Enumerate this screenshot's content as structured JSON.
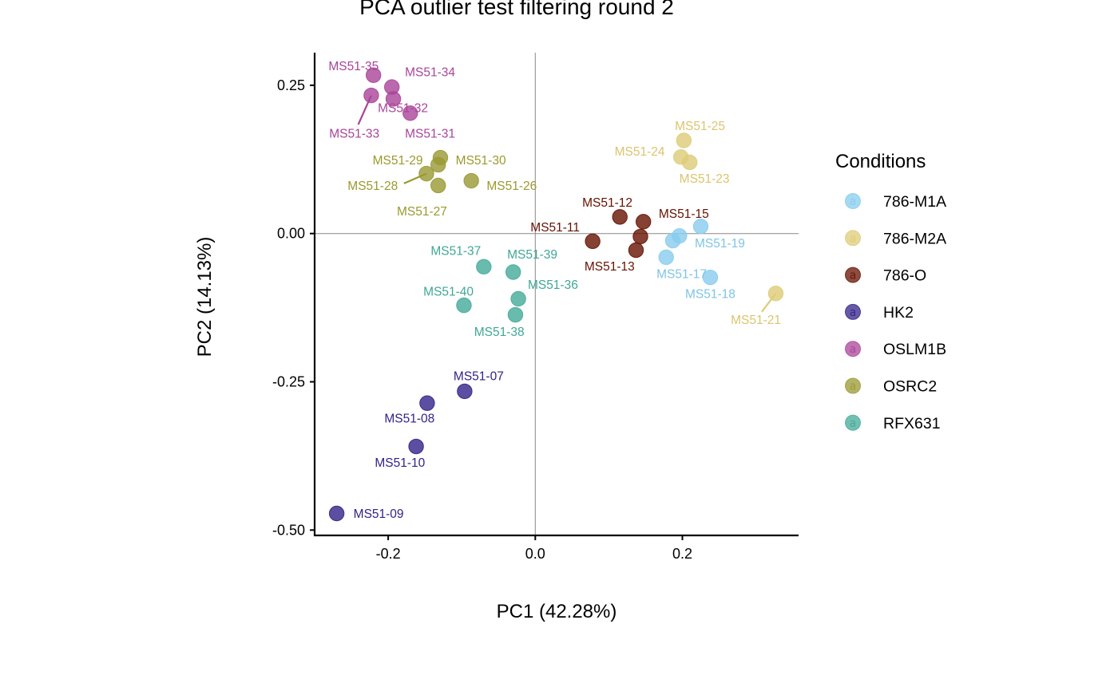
{
  "chart_data": {
    "type": "scatter",
    "title": "PCA outlier test filtering round  2",
    "xlabel": "PC1 (42.28%)",
    "ylabel": "PC2 (14.13%)",
    "xlim": [
      -0.3,
      0.358
    ],
    "ylim": [
      -0.509,
      0.305
    ],
    "xticks": [
      {
        "value": -0.2,
        "label": "-0.2"
      },
      {
        "value": 0.0,
        "label": "0.0"
      },
      {
        "value": 0.2,
        "label": "0.2"
      }
    ],
    "yticks": [
      {
        "value": 0.25,
        "label": "0.25"
      },
      {
        "value": 0.0,
        "label": "0.00"
      },
      {
        "value": -0.25,
        "label": "-0.25"
      },
      {
        "value": -0.5,
        "label": "-0.50"
      }
    ],
    "grid": false,
    "reference_lines": {
      "x": 0,
      "y": 0
    },
    "legend": {
      "title": "Conditions",
      "position": "right",
      "key_glyph": "a",
      "entries": [
        {
          "name": "786-M1A",
          "color": "#88CCEE"
        },
        {
          "name": "786-M2A",
          "color": "#DDCC77"
        },
        {
          "name": "786-O",
          "color": "#661100"
        },
        {
          "name": "HK2",
          "color": "#332288"
        },
        {
          "name": "OSLM1B",
          "color": "#AA4499"
        },
        {
          "name": "OSRC2",
          "color": "#999933"
        },
        {
          "name": "RFX631",
          "color": "#44AA99"
        }
      ]
    },
    "series": [
      {
        "name": "786-M1A",
        "color": "#88CCEE",
        "label_color": "#7EC4E6",
        "points": [
          {
            "id": "MS51-19",
            "x": 0.225,
            "y": 0.012,
            "lx": 0.251,
            "ly": -0.016,
            "show_label": true
          },
          {
            "id": "MS51-16",
            "x": 0.196,
            "y": -0.004,
            "show_label": false
          },
          {
            "id": "MS51-20",
            "x": 0.187,
            "y": -0.012,
            "show_label": false
          },
          {
            "id": "MS51-17",
            "x": 0.178,
            "y": -0.04,
            "lx": 0.199,
            "ly": -0.068,
            "show_label": true
          },
          {
            "id": "MS51-18",
            "x": 0.238,
            "y": -0.074,
            "lx": 0.238,
            "ly": -0.101,
            "show_label": true
          }
        ]
      },
      {
        "name": "786-M2A",
        "color": "#DDCC77",
        "label_color": "#DCC46E",
        "points": [
          {
            "id": "MS51-25",
            "x": 0.202,
            "y": 0.157,
            "lx": 0.224,
            "ly": 0.182,
            "show_label": true
          },
          {
            "id": "MS51-24",
            "x": 0.198,
            "y": 0.129,
            "lx": 0.142,
            "ly": 0.139,
            "show_label": true
          },
          {
            "id": "MS51-23",
            "x": 0.21,
            "y": 0.12,
            "lx": 0.23,
            "ly": 0.093,
            "show_label": true
          },
          {
            "id": "MS51-21",
            "x": 0.327,
            "y": -0.101,
            "lx": 0.3,
            "ly": -0.145,
            "show_label": true,
            "leader": true
          }
        ]
      },
      {
        "name": "786-O",
        "color": "#661100",
        "label_color": "#661100",
        "points": [
          {
            "id": "MS51-12",
            "x": 0.115,
            "y": 0.028,
            "lx": 0.098,
            "ly": 0.053,
            "show_label": true
          },
          {
            "id": "MS51-15",
            "x": 0.147,
            "y": 0.02,
            "lx": 0.202,
            "ly": 0.034,
            "show_label": true
          },
          {
            "id": "MS51-11",
            "x": 0.078,
            "y": -0.013,
            "lx": 0.027,
            "ly": 0.011,
            "show_label": true
          },
          {
            "id": "MS51-14",
            "x": 0.143,
            "y": -0.005,
            "show_label": false
          },
          {
            "id": "MS51-13",
            "x": 0.137,
            "y": -0.028,
            "lx": 0.101,
            "ly": -0.055,
            "show_label": true
          }
        ]
      },
      {
        "name": "HK2",
        "color": "#332288",
        "label_color": "#332288",
        "points": [
          {
            "id": "MS51-07",
            "x": -0.096,
            "y": -0.266,
            "lx": -0.077,
            "ly": -0.24,
            "show_label": true
          },
          {
            "id": "MS51-08",
            "x": -0.147,
            "y": -0.286,
            "lx": -0.171,
            "ly": -0.311,
            "show_label": true
          },
          {
            "id": "MS51-10",
            "x": -0.162,
            "y": -0.359,
            "lx": -0.184,
            "ly": -0.386,
            "show_label": true
          },
          {
            "id": "MS51-09",
            "x": -0.27,
            "y": -0.472,
            "lx": -0.213,
            "ly": -0.472,
            "show_label": true
          }
        ]
      },
      {
        "name": "OSLM1B",
        "color": "#AA4499",
        "label_color": "#A8449A",
        "points": [
          {
            "id": "MS51-35",
            "x": -0.22,
            "y": 0.267,
            "lx": -0.247,
            "ly": 0.283,
            "show_label": true
          },
          {
            "id": "MS51-34",
            "x": -0.195,
            "y": 0.247,
            "lx": -0.143,
            "ly": 0.273,
            "show_label": true
          },
          {
            "id": "MS51-33",
            "x": -0.223,
            "y": 0.233,
            "lx": -0.246,
            "ly": 0.169,
            "show_label": true,
            "leader": true
          },
          {
            "id": "MS51-32",
            "x": -0.193,
            "y": 0.227,
            "lx": -0.18,
            "ly": 0.212,
            "show_label": true
          },
          {
            "id": "MS51-31",
            "x": -0.17,
            "y": 0.203,
            "lx": -0.143,
            "ly": 0.169,
            "show_label": true
          }
        ]
      },
      {
        "name": "OSRC2",
        "color": "#999933",
        "label_color": "#9A9A2E",
        "points": [
          {
            "id": "MS51-29",
            "x": -0.129,
            "y": 0.128,
            "lx": -0.187,
            "ly": 0.124,
            "show_label": true
          },
          {
            "id": "MS51-30",
            "x": -0.132,
            "y": 0.116,
            "lx": -0.074,
            "ly": 0.124,
            "show_label": true
          },
          {
            "id": "MS51-28",
            "x": -0.148,
            "y": 0.101,
            "lx": -0.221,
            "ly": 0.081,
            "show_label": true,
            "leader": true
          },
          {
            "id": "MS51-27",
            "x": -0.132,
            "y": 0.081,
            "lx": -0.154,
            "ly": 0.038,
            "show_label": true
          },
          {
            "id": "MS51-26",
            "x": -0.087,
            "y": 0.089,
            "lx": -0.032,
            "ly": 0.081,
            "show_label": true
          }
        ]
      },
      {
        "name": "RFX631",
        "color": "#44AA99",
        "label_color": "#3FA796",
        "points": [
          {
            "id": "MS51-37",
            "x": -0.07,
            "y": -0.056,
            "lx": -0.108,
            "ly": -0.029,
            "show_label": true
          },
          {
            "id": "MS51-39",
            "x": -0.03,
            "y": -0.065,
            "lx": -0.004,
            "ly": -0.035,
            "show_label": true
          },
          {
            "id": "MS51-36",
            "x": -0.023,
            "y": -0.11,
            "lx": 0.024,
            "ly": -0.086,
            "show_label": true
          },
          {
            "id": "MS51-40",
            "x": -0.097,
            "y": -0.121,
            "lx": -0.118,
            "ly": -0.097,
            "show_label": true
          },
          {
            "id": "MS51-38",
            "x": -0.027,
            "y": -0.137,
            "lx": -0.049,
            "ly": -0.165,
            "show_label": true
          }
        ]
      }
    ]
  }
}
